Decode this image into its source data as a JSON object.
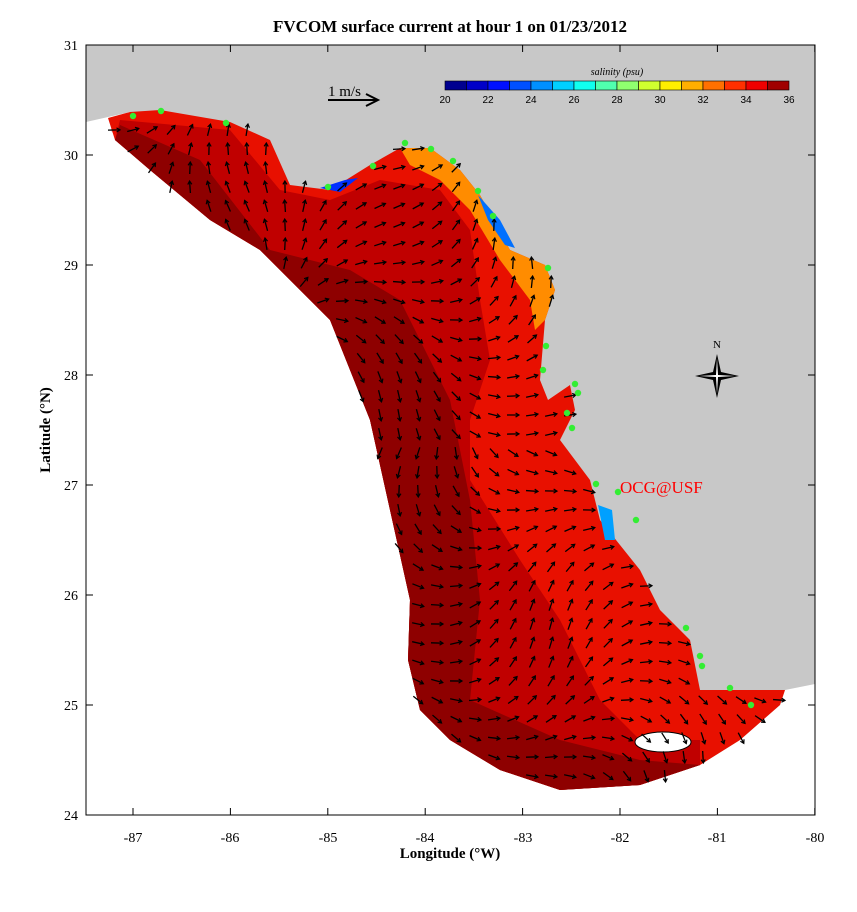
{
  "title": "FVCOM surface current at hour 1 on 01/23/2012",
  "xlabel": "Longitude (°W)",
  "ylabel": "Latitude (°N)",
  "x_ticks": [
    "-87",
    "-86",
    "-85",
    "-84",
    "-83",
    "-82",
    "-81",
    "-80"
  ],
  "y_ticks": [
    "31",
    "30",
    "29",
    "28",
    "27",
    "26",
    "25",
    "24"
  ],
  "xlim": [
    -87.5,
    -80
  ],
  "ylim": [
    24,
    31
  ],
  "scale_arrow_label": "1 m/s",
  "colorbar": {
    "label": "salinity (psu)",
    "range": [
      20,
      36
    ],
    "tick_labels": [
      "20",
      "22",
      "24",
      "26",
      "28",
      "30",
      "32",
      "34",
      "36"
    ],
    "colors": [
      "#00008f",
      "#0000c8",
      "#0010ff",
      "#0050ff",
      "#0090ff",
      "#00d0ff",
      "#10ffef",
      "#50ffaf",
      "#90ff6f",
      "#d0ff2f",
      "#ffef00",
      "#ffaf00",
      "#ff7000",
      "#ff3000",
      "#ef0000",
      "#a00000"
    ]
  },
  "compass_label": "N",
  "watermark": "OCG@USF",
  "colors": {
    "land": "#c8c8c8",
    "station": "#33ee33",
    "watermark": "#ff0000"
  }
}
